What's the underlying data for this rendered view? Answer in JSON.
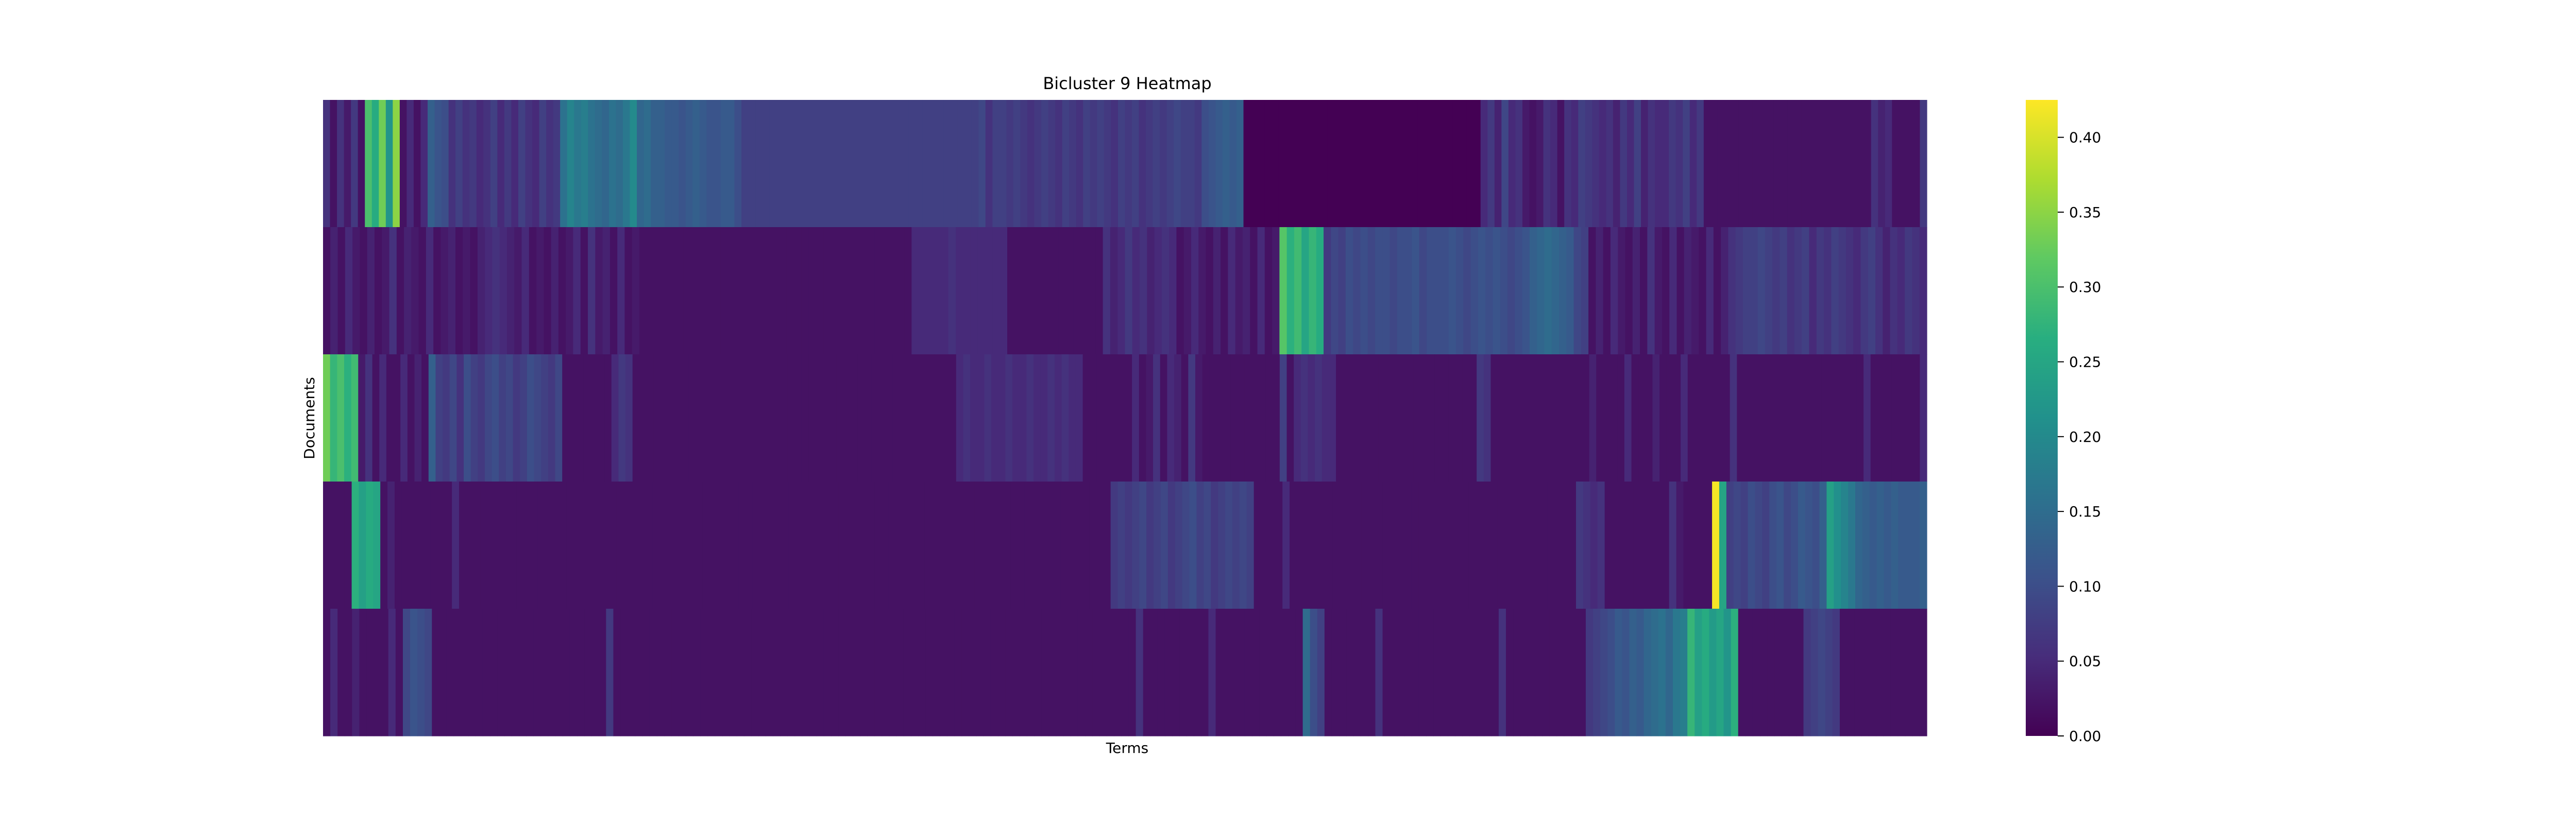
{
  "chart_data": {
    "type": "heatmap",
    "title": "Bicluster 9 Heatmap",
    "xlabel": "Terms",
    "ylabel": "Documents",
    "rows": 5,
    "columns": 224,
    "colormap": "viridis",
    "colorbar": {
      "range": [
        0.0,
        0.425
      ],
      "ticks": [
        "0.00",
        "0.05",
        "0.10",
        "0.15",
        "0.20",
        "0.25",
        "0.30",
        "0.35",
        "0.40"
      ]
    },
    "row_values": [
      [
        0.06,
        0.02,
        0.06,
        0.03,
        0.07,
        0.02,
        0.3,
        0.26,
        0.33,
        0.22,
        0.35,
        0.02,
        0.05,
        0.02,
        0.05,
        0.13,
        0.11,
        0.1,
        0.06,
        0.08,
        0.06,
        0.07,
        0.05,
        0.06,
        0.08,
        0.05,
        0.07,
        0.05,
        0.08,
        0.06,
        0.05,
        0.08,
        0.06,
        0.07,
        0.16,
        0.19,
        0.17,
        0.18,
        0.16,
        0.15,
        0.14,
        0.16,
        0.15,
        0.17,
        0.2,
        0.14,
        0.15,
        0.13,
        0.13,
        0.12,
        0.12,
        0.11,
        0.12,
        0.13,
        0.12,
        0.11,
        0.11,
        0.12,
        0.12,
        0.1,
        0.08,
        0.08,
        0.08,
        0.08,
        0.08,
        0.08,
        0.08,
        0.08,
        0.08,
        0.08,
        0.08,
        0.08,
        0.08,
        0.08,
        0.08,
        0.08,
        0.08,
        0.08,
        0.08,
        0.08,
        0.08,
        0.08,
        0.08,
        0.08,
        0.08,
        0.08,
        0.08,
        0.08,
        0.08,
        0.08,
        0.08,
        0.08,
        0.08,
        0.08,
        0.09,
        0.06,
        0.08,
        0.08,
        0.07,
        0.08,
        0.07,
        0.06,
        0.07,
        0.08,
        0.07,
        0.06,
        0.08,
        0.07,
        0.06,
        0.08,
        0.07,
        0.08,
        0.07,
        0.06,
        0.08,
        0.07,
        0.08,
        0.06,
        0.07,
        0.08,
        0.07,
        0.08,
        0.09,
        0.08,
        0.08,
        0.07,
        0.1,
        0.11,
        0.12,
        0.13,
        0.12,
        0.13,
        0.0,
        0.0,
        0.0,
        0.0,
        0.0,
        0.0,
        0.0,
        0.0,
        0.0,
        0.0,
        0.0,
        0.0,
        0.0,
        0.0,
        0.0,
        0.0,
        0.0,
        0.0,
        0.0,
        0.0,
        0.0,
        0.0,
        0.0,
        0.0,
        0.0,
        0.0,
        0.0,
        0.0,
        0.0,
        0.0,
        0.0,
        0.0,
        0.0,
        0.0,
        0.05,
        0.07,
        0.04,
        0.09,
        0.05,
        0.06,
        0.03,
        0.02,
        0.03,
        0.06,
        0.05,
        0.02,
        0.06,
        0.05,
        0.08,
        0.07,
        0.06,
        0.05,
        0.06,
        0.04,
        0.07,
        0.05,
        0.08,
        0.04,
        0.06,
        0.05,
        0.05,
        0.07,
        0.06,
        0.08,
        0.05,
        0.07,
        0.02,
        0.02,
        0.02,
        0.02,
        0.02,
        0.02,
        0.02,
        0.02,
        0.02,
        0.02,
        0.02,
        0.02,
        0.02,
        0.02,
        0.02,
        0.02,
        0.02,
        0.02,
        0.02,
        0.02,
        0.02,
        0.02,
        0.02,
        0.02,
        0.06,
        0.04,
        0.05,
        0.02,
        0.02,
        0.02,
        0.02,
        0.07
      ],
      [
        0.02,
        0.04,
        0.02,
        0.05,
        0.03,
        0.02,
        0.04,
        0.02,
        0.03,
        0.06,
        0.02,
        0.04,
        0.03,
        0.02,
        0.05,
        0.02,
        0.03,
        0.04,
        0.02,
        0.03,
        0.02,
        0.04,
        0.05,
        0.06,
        0.05,
        0.04,
        0.03,
        0.05,
        0.02,
        0.03,
        0.02,
        0.04,
        0.02,
        0.03,
        0.05,
        0.02,
        0.06,
        0.03,
        0.04,
        0.02,
        0.05,
        0.02,
        0.03,
        0.02,
        0.02,
        0.02,
        0.02,
        0.02,
        0.02,
        0.02,
        0.02,
        0.02,
        0.02,
        0.02,
        0.02,
        0.02,
        0.02,
        0.02,
        0.02,
        0.02,
        0.02,
        0.02,
        0.02,
        0.02,
        0.02,
        0.02,
        0.02,
        0.02,
        0.02,
        0.02,
        0.02,
        0.02,
        0.02,
        0.02,
        0.02,
        0.02,
        0.02,
        0.02,
        0.02,
        0.02,
        0.05,
        0.05,
        0.05,
        0.05,
        0.05,
        0.06,
        0.05,
        0.05,
        0.05,
        0.05,
        0.05,
        0.05,
        0.05,
        0.02,
        0.02,
        0.02,
        0.02,
        0.02,
        0.02,
        0.02,
        0.02,
        0.02,
        0.02,
        0.02,
        0.02,
        0.02,
        0.06,
        0.04,
        0.05,
        0.07,
        0.05,
        0.06,
        0.04,
        0.05,
        0.06,
        0.05,
        0.02,
        0.03,
        0.05,
        0.03,
        0.02,
        0.04,
        0.02,
        0.05,
        0.03,
        0.04,
        0.02,
        0.05,
        0.02,
        0.03,
        0.31,
        0.27,
        0.29,
        0.25,
        0.28,
        0.26,
        0.07,
        0.09,
        0.08,
        0.1,
        0.09,
        0.1,
        0.09,
        0.1,
        0.1,
        0.09,
        0.1,
        0.1,
        0.11,
        0.09,
        0.1,
        0.1,
        0.1,
        0.11,
        0.1,
        0.09,
        0.1,
        0.11,
        0.1,
        0.11,
        0.1,
        0.09,
        0.1,
        0.11,
        0.13,
        0.14,
        0.15,
        0.14,
        0.13,
        0.12,
        0.09,
        0.08,
        0.02,
        0.04,
        0.02,
        0.05,
        0.03,
        0.02,
        0.04,
        0.02,
        0.06,
        0.03,
        0.02,
        0.05,
        0.02,
        0.04,
        0.03,
        0.02,
        0.05,
        0.02,
        0.04,
        0.06,
        0.07,
        0.08,
        0.08,
        0.09,
        0.08,
        0.07,
        0.08,
        0.06,
        0.07,
        0.08,
        0.05,
        0.07,
        0.06,
        0.08,
        0.07,
        0.06,
        0.05,
        0.07,
        0.08,
        0.06,
        0.04,
        0.06,
        0.05,
        0.07,
        0.06,
        0.05
      ],
      [
        0.33,
        0.28,
        0.3,
        0.27,
        0.29,
        0.03,
        0.06,
        0.02,
        0.05,
        0.02,
        0.02,
        0.05,
        0.02,
        0.04,
        0.02,
        0.13,
        0.08,
        0.07,
        0.09,
        0.06,
        0.1,
        0.08,
        0.07,
        0.09,
        0.1,
        0.08,
        0.09,
        0.07,
        0.08,
        0.1,
        0.09,
        0.08,
        0.07,
        0.09,
        0.02,
        0.02,
        0.02,
        0.02,
        0.02,
        0.02,
        0.02,
        0.05,
        0.07,
        0.06,
        0.02,
        0.02,
        0.02,
        0.02,
        0.02,
        0.02,
        0.02,
        0.02,
        0.02,
        0.02,
        0.02,
        0.02,
        0.02,
        0.02,
        0.02,
        0.02,
        0.02,
        0.02,
        0.02,
        0.02,
        0.02,
        0.02,
        0.02,
        0.02,
        0.02,
        0.02,
        0.02,
        0.02,
        0.02,
        0.02,
        0.02,
        0.02,
        0.02,
        0.02,
        0.02,
        0.02,
        0.02,
        0.02,
        0.02,
        0.02,
        0.02,
        0.02,
        0.02,
        0.02,
        0.02,
        0.02,
        0.05,
        0.06,
        0.05,
        0.05,
        0.06,
        0.05,
        0.05,
        0.06,
        0.05,
        0.05,
        0.06,
        0.05,
        0.05,
        0.06,
        0.05,
        0.06,
        0.05,
        0.05,
        0.02,
        0.02,
        0.02,
        0.02,
        0.02,
        0.02,
        0.02,
        0.05,
        0.02,
        0.03,
        0.06,
        0.02,
        0.05,
        0.04,
        0.02,
        0.07,
        0.03,
        0.02,
        0.02,
        0.02,
        0.02,
        0.02,
        0.02,
        0.02,
        0.02,
        0.02,
        0.02,
        0.02,
        0.08,
        0.02,
        0.05,
        0.06,
        0.05,
        0.06,
        0.05,
        0.05,
        0.02,
        0.02,
        0.02,
        0.02,
        0.02,
        0.02,
        0.02,
        0.02,
        0.02,
        0.02,
        0.02,
        0.02,
        0.02,
        0.02,
        0.02,
        0.02,
        0.02,
        0.02,
        0.02,
        0.02,
        0.07,
        0.06,
        0.02,
        0.02,
        0.02,
        0.02,
        0.02,
        0.02,
        0.02,
        0.02,
        0.02,
        0.02,
        0.02,
        0.02,
        0.02,
        0.02,
        0.04,
        0.02,
        0.02,
        0.02,
        0.02,
        0.05,
        0.02,
        0.02,
        0.02,
        0.04,
        0.02,
        0.02,
        0.02,
        0.05,
        0.02,
        0.02,
        0.02,
        0.02,
        0.02,
        0.02,
        0.06,
        0.02,
        0.02,
        0.02,
        0.02,
        0.02,
        0.02,
        0.02,
        0.02,
        0.02,
        0.02,
        0.02,
        0.02,
        0.02,
        0.02,
        0.02,
        0.02,
        0.02,
        0.02,
        0.05,
        0.02,
        0.02,
        0.02,
        0.02,
        0.02,
        0.02,
        0.02,
        0.05
      ],
      [
        0.02,
        0.02,
        0.02,
        0.02,
        0.27,
        0.24,
        0.26,
        0.25,
        0.02,
        0.04,
        0.02,
        0.02,
        0.02,
        0.02,
        0.02,
        0.02,
        0.02,
        0.02,
        0.05,
        0.02,
        0.02,
        0.02,
        0.02,
        0.02,
        0.02,
        0.02,
        0.02,
        0.02,
        0.02,
        0.02,
        0.02,
        0.02,
        0.02,
        0.02,
        0.02,
        0.02,
        0.02,
        0.02,
        0.02,
        0.02,
        0.02,
        0.02,
        0.02,
        0.02,
        0.02,
        0.02,
        0.02,
        0.02,
        0.02,
        0.02,
        0.02,
        0.02,
        0.02,
        0.02,
        0.02,
        0.02,
        0.02,
        0.02,
        0.02,
        0.02,
        0.02,
        0.02,
        0.02,
        0.02,
        0.02,
        0.02,
        0.02,
        0.02,
        0.02,
        0.02,
        0.02,
        0.02,
        0.02,
        0.02,
        0.02,
        0.02,
        0.02,
        0.02,
        0.02,
        0.02,
        0.02,
        0.02,
        0.02,
        0.02,
        0.02,
        0.02,
        0.02,
        0.02,
        0.02,
        0.02,
        0.02,
        0.02,
        0.02,
        0.02,
        0.02,
        0.02,
        0.02,
        0.02,
        0.02,
        0.02,
        0.02,
        0.02,
        0.02,
        0.02,
        0.02,
        0.02,
        0.02,
        0.02,
        0.02,
        0.02,
        0.07,
        0.08,
        0.07,
        0.08,
        0.09,
        0.07,
        0.08,
        0.09,
        0.07,
        0.08,
        0.09,
        0.1,
        0.08,
        0.09,
        0.07,
        0.08,
        0.09,
        0.08,
        0.09,
        0.08,
        0.02,
        0.02,
        0.02,
        0.02,
        0.05,
        0.02,
        0.02,
        0.02,
        0.02,
        0.02,
        0.02,
        0.02,
        0.02,
        0.02,
        0.02,
        0.02,
        0.02,
        0.02,
        0.02,
        0.02,
        0.02,
        0.02,
        0.02,
        0.02,
        0.02,
        0.02,
        0.02,
        0.02,
        0.02,
        0.02,
        0.02,
        0.02,
        0.02,
        0.02,
        0.02,
        0.02,
        0.02,
        0.02,
        0.02,
        0.02,
        0.02,
        0.02,
        0.02,
        0.02,
        0.02,
        0.07,
        0.06,
        0.05,
        0.06,
        0.02,
        0.02,
        0.02,
        0.02,
        0.02,
        0.02,
        0.02,
        0.02,
        0.02,
        0.06,
        0.03,
        0.02,
        0.02,
        0.02,
        0.02,
        0.42,
        0.25,
        0.08,
        0.09,
        0.08,
        0.1,
        0.09,
        0.08,
        0.1,
        0.11,
        0.09,
        0.1,
        0.12,
        0.11,
        0.1,
        0.13,
        0.24,
        0.21,
        0.19,
        0.17,
        0.14,
        0.13,
        0.12,
        0.13,
        0.12,
        0.13,
        0.12,
        0.12,
        0.12,
        0.13
      ],
      [
        0.02,
        0.05,
        0.02,
        0.02,
        0.04,
        0.02,
        0.02,
        0.02,
        0.02,
        0.05,
        0.02,
        0.09,
        0.11,
        0.1,
        0.09,
        0.02,
        0.02,
        0.02,
        0.02,
        0.02,
        0.02,
        0.02,
        0.02,
        0.02,
        0.02,
        0.02,
        0.02,
        0.02,
        0.02,
        0.02,
        0.02,
        0.02,
        0.02,
        0.02,
        0.02,
        0.02,
        0.02,
        0.02,
        0.02,
        0.07,
        0.02,
        0.02,
        0.02,
        0.02,
        0.02,
        0.02,
        0.02,
        0.02,
        0.02,
        0.02,
        0.02,
        0.02,
        0.02,
        0.02,
        0.02,
        0.02,
        0.02,
        0.02,
        0.02,
        0.02,
        0.02,
        0.02,
        0.02,
        0.02,
        0.02,
        0.02,
        0.02,
        0.02,
        0.02,
        0.02,
        0.02,
        0.02,
        0.02,
        0.02,
        0.02,
        0.02,
        0.02,
        0.02,
        0.02,
        0.02,
        0.02,
        0.02,
        0.02,
        0.02,
        0.02,
        0.02,
        0.02,
        0.02,
        0.02,
        0.02,
        0.02,
        0.02,
        0.02,
        0.02,
        0.02,
        0.02,
        0.02,
        0.02,
        0.02,
        0.02,
        0.02,
        0.02,
        0.02,
        0.02,
        0.02,
        0.02,
        0.02,
        0.02,
        0.02,
        0.02,
        0.02,
        0.02,
        0.06,
        0.02,
        0.02,
        0.02,
        0.02,
        0.02,
        0.02,
        0.02,
        0.02,
        0.02,
        0.05,
        0.02,
        0.02,
        0.02,
        0.02,
        0.02,
        0.02,
        0.02,
        0.02,
        0.02,
        0.02,
        0.02,
        0.02,
        0.15,
        0.1,
        0.08,
        0.02,
        0.02,
        0.02,
        0.02,
        0.02,
        0.02,
        0.02,
        0.06,
        0.02,
        0.02,
        0.02,
        0.02,
        0.02,
        0.02,
        0.02,
        0.02,
        0.02,
        0.02,
        0.02,
        0.02,
        0.02,
        0.02,
        0.02,
        0.02,
        0.06,
        0.02,
        0.02,
        0.02,
        0.02,
        0.02,
        0.02,
        0.02,
        0.02,
        0.02,
        0.02,
        0.02,
        0.07,
        0.08,
        0.09,
        0.1,
        0.12,
        0.11,
        0.13,
        0.12,
        0.14,
        0.15,
        0.16,
        0.14,
        0.17,
        0.18,
        0.28,
        0.24,
        0.26,
        0.23,
        0.25,
        0.22,
        0.27,
        0.02,
        0.02,
        0.02,
        0.02,
        0.02,
        0.02,
        0.02,
        0.02,
        0.02,
        0.07,
        0.08,
        0.09,
        0.08,
        0.07,
        0.02,
        0.02,
        0.02,
        0.02,
        0.02,
        0.02,
        0.02,
        0.02,
        0.02,
        0.02,
        0.02,
        0.02
      ]
    ]
  }
}
